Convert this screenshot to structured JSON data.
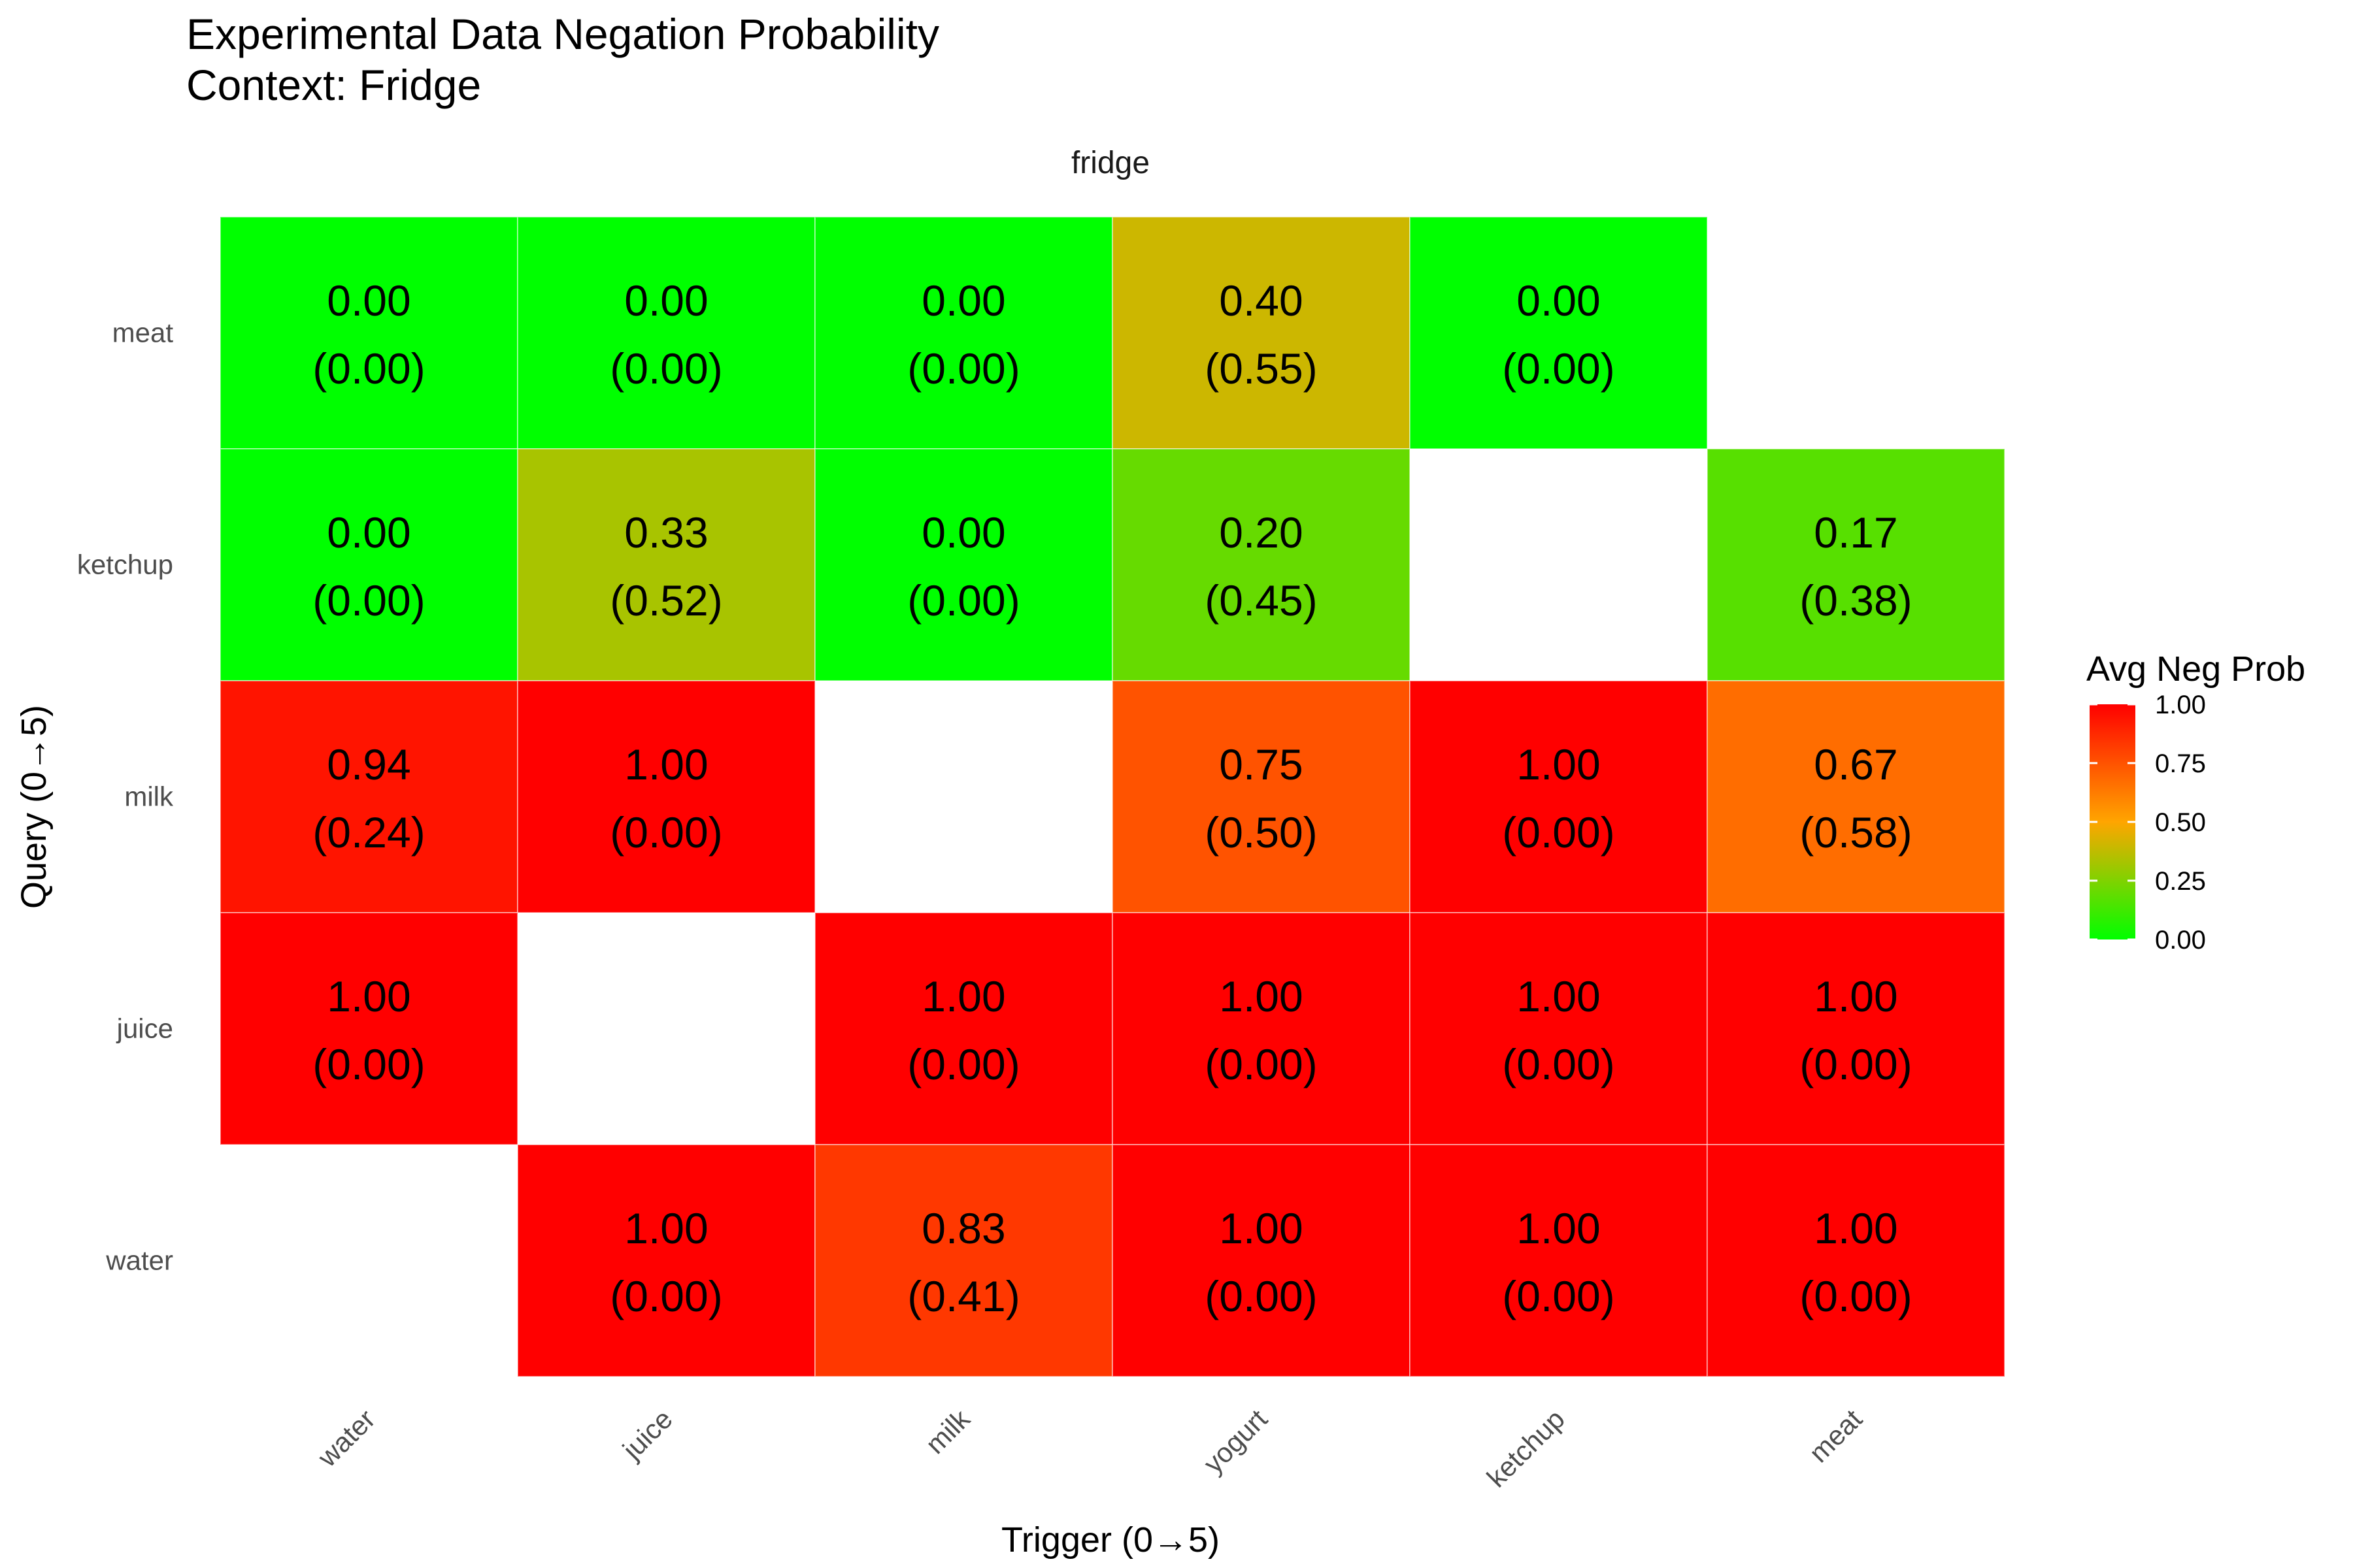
{
  "chart_data": {
    "type": "heatmap",
    "title": "Experimental Data Negation Probability",
    "subtitle": "Context: Fridge",
    "facet_label": "fridge",
    "xlabel": "Trigger (0→5)",
    "ylabel": "Query   (0→5)",
    "x_categories": [
      "water",
      "juice",
      "milk",
      "yogurt",
      "ketchup",
      "meat"
    ],
    "y_categories": [
      "meat",
      "ketchup",
      "milk",
      "juice",
      "water"
    ],
    "values": [
      [
        0.0,
        0.0,
        0.0,
        0.4,
        0.0,
        null
      ],
      [
        0.0,
        0.33,
        0.0,
        0.2,
        null,
        0.17
      ],
      [
        0.94,
        1.0,
        null,
        0.75,
        1.0,
        0.67
      ],
      [
        1.0,
        null,
        1.0,
        1.0,
        1.0,
        1.0
      ],
      [
        null,
        1.0,
        0.83,
        1.0,
        1.0,
        1.0
      ]
    ],
    "sd": [
      [
        0.0,
        0.0,
        0.0,
        0.55,
        0.0,
        null
      ],
      [
        0.0,
        0.52,
        0.0,
        0.45,
        null,
        0.38
      ],
      [
        0.24,
        0.0,
        null,
        0.5,
        0.0,
        0.58
      ],
      [
        0.0,
        null,
        0.0,
        0.0,
        0.0,
        0.0
      ],
      [
        null,
        0.0,
        0.41,
        0.0,
        0.0,
        0.0
      ]
    ],
    "legend": {
      "title": "Avg Neg Prob",
      "ticks": [
        "1.00",
        "0.75",
        "0.50",
        "0.25",
        "0.00"
      ],
      "tick_values": [
        1.0,
        0.75,
        0.5,
        0.25,
        0.0
      ],
      "low_color": "#00ff00",
      "mid_color": "#ffa500",
      "high_color": "#ff0000",
      "position": "right"
    },
    "value_range": [
      0,
      1
    ]
  }
}
